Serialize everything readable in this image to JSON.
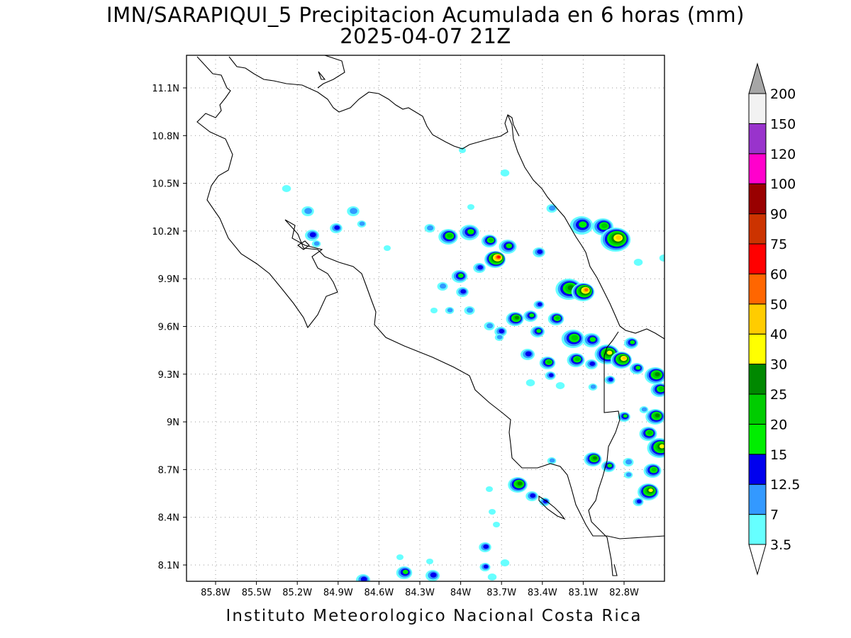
{
  "title": {
    "line1": "IMN/SARAPIQUI_5 Precipitacion Acumulada en 6 horas (mm)",
    "line2": "2025-04-07 21Z"
  },
  "map": {
    "lat_ticks": [
      "11.1N",
      "10.8N",
      "10.5N",
      "10.2N",
      "9.9N",
      "9.6N",
      "9.3N",
      "9N",
      "8.7N",
      "8.4N",
      "8.1N"
    ],
    "lon_ticks": [
      "85.8W",
      "85.5W",
      "85.2W",
      "84.9W",
      "84.6W",
      "84.3W",
      "84W",
      "83.7W",
      "83.4W",
      "83.1W",
      "82.8W"
    ],
    "grid": true
  },
  "colorbar": {
    "labels": [
      "3.5",
      "7",
      "12.5",
      "15",
      "20",
      "25",
      "30",
      "40",
      "50",
      "60",
      "75",
      "90",
      "100",
      "120",
      "150",
      "200"
    ],
    "colors": [
      "#66ffff",
      "#3399ff",
      "#0000ee",
      "#00ee00",
      "#00cc00",
      "#008800",
      "#ffff00",
      "#ffcc00",
      "#ff6600",
      "#ff0000",
      "#cc3300",
      "#990000",
      "#ff00cc",
      "#9933cc",
      "#f2f2f2"
    ],
    "over_color": "#a6a6a6"
  },
  "footer": "Instituto Meteorologico Nacional Costa Rica"
}
